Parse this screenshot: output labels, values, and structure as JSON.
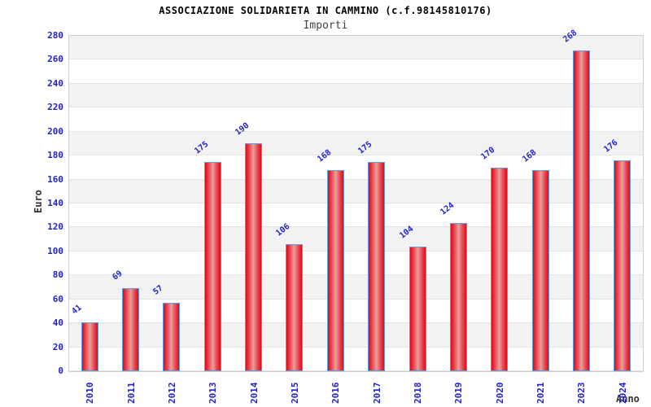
{
  "chart_data": {
    "type": "bar",
    "title": "ASSOCIAZIONE SOLIDARIETA IN CAMMINO (c.f.98145810176)",
    "subtitle": "Importi",
    "xlabel": "Anno",
    "ylabel": "Euro",
    "categories": [
      "2010",
      "2011",
      "2012",
      "2013",
      "2014",
      "2015",
      "2016",
      "2017",
      "2018",
      "2019",
      "2020",
      "2021",
      "2023",
      "2024"
    ],
    "values": [
      41,
      69,
      57,
      175,
      190,
      106,
      168,
      175,
      104,
      124,
      170,
      168,
      268,
      176
    ],
    "ylim": [
      0,
      280
    ],
    "ytick_step": 20,
    "grid": "horizontal-bands",
    "legend": "none",
    "colors": {
      "bar_fill_edge": "#e00a18",
      "bar_fill_center": "#dfa6a6",
      "bar_border": "#5b9fe0",
      "value_text": "#2222cc",
      "tick_text": "#2222cc",
      "band_gray": "#f2f2f2",
      "band_white": "#ffffff",
      "gridline": "#e4e4e4",
      "plot_border": "#cfcfcf",
      "title_text": "#000000",
      "subtitle_text": "#444444",
      "axis_label_text": "#333333"
    }
  }
}
